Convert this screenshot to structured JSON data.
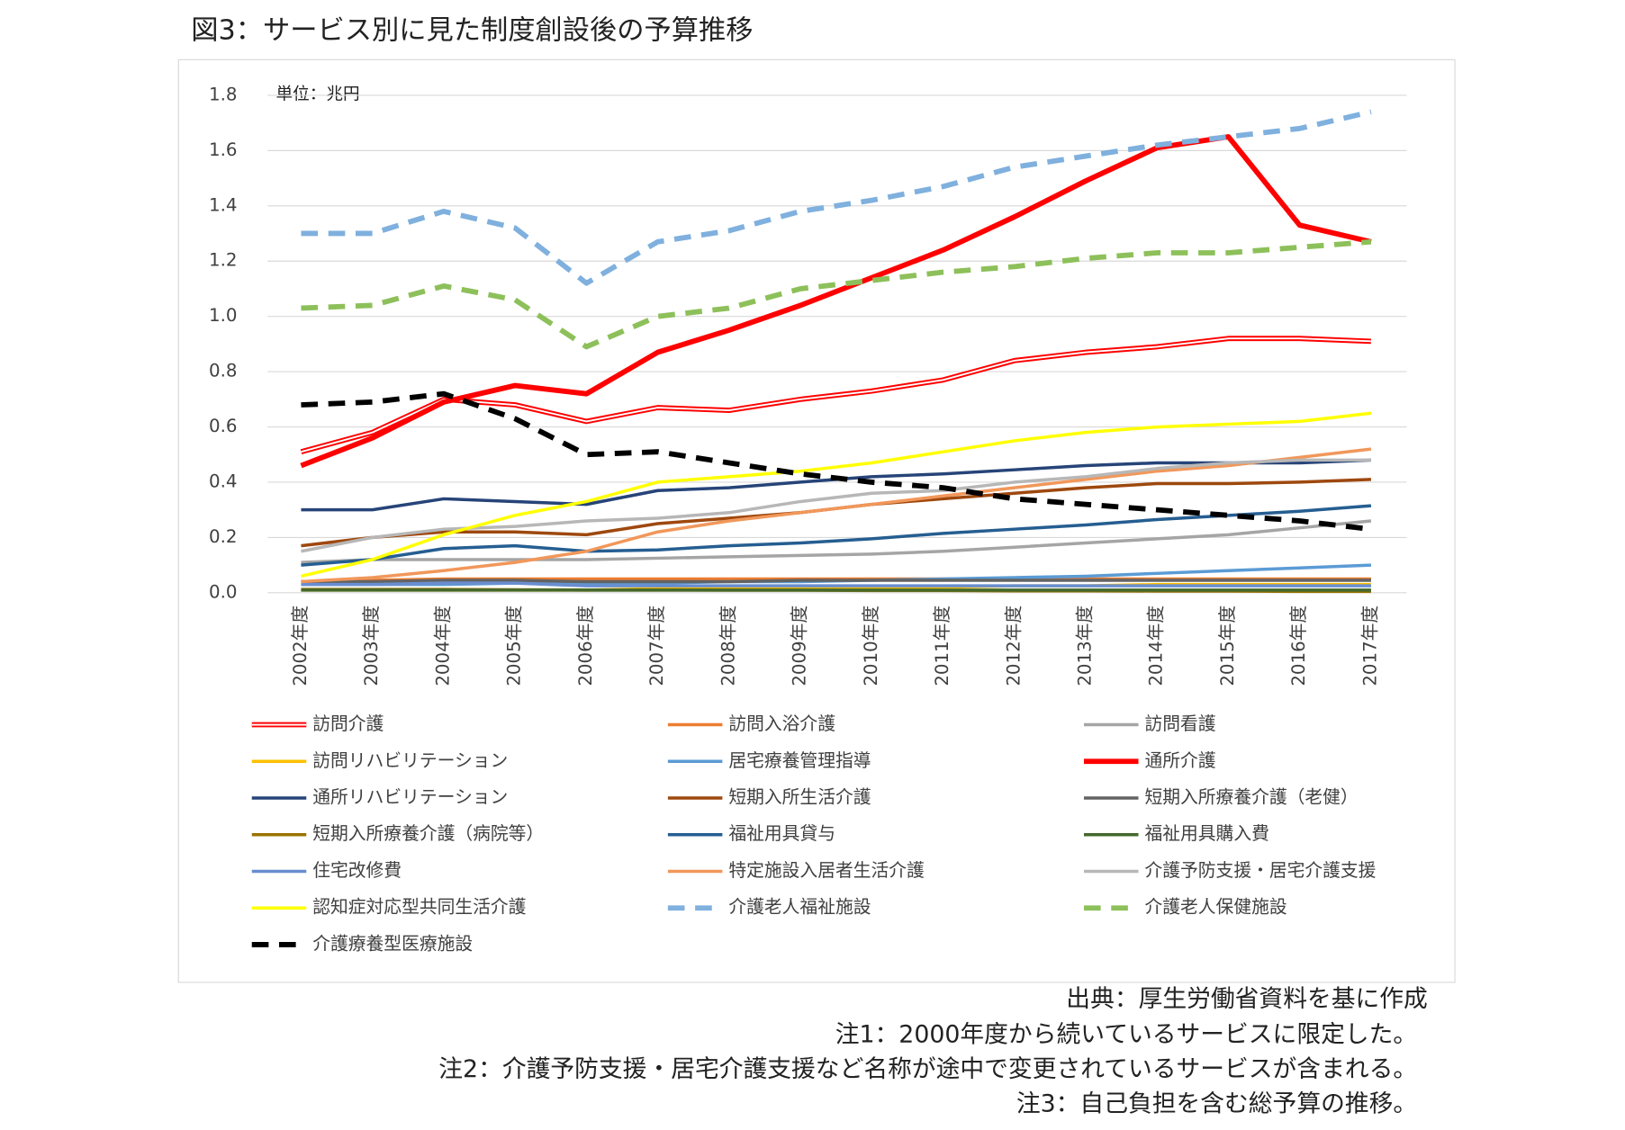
{
  "chart_data": {
    "type": "line",
    "title": "図3：サービス別に見た制度創設後の予算推移",
    "unit_label": "単位：兆円",
    "categories": [
      "2002年度",
      "2003年度",
      "2004年度",
      "2005年度",
      "2006年度",
      "2007年度",
      "2008年度",
      "2009年度",
      "2010年度",
      "2011年度",
      "2012年度",
      "2013年度",
      "2014年度",
      "2015年度",
      "2016年度",
      "2017年度"
    ],
    "ylim": [
      0,
      1.8
    ],
    "yticks": [
      {
        "value": 0,
        "label": "0.0"
      },
      0.2,
      0.4,
      0.6,
      0.8,
      {
        "value": 1,
        "label": "1.0"
      },
      1.2,
      1.4,
      1.6,
      1.8
    ],
    "grid": true,
    "series": [
      {
        "name": "訪問介護",
        "color": "#ff0000",
        "line_style": "double",
        "values": [
          0.51,
          0.58,
          0.7,
          0.68,
          0.62,
          0.67,
          0.66,
          0.7,
          0.73,
          0.77,
          0.84,
          0.87,
          0.89,
          0.92,
          0.92,
          0.91
        ]
      },
      {
        "name": "訪問入浴介護",
        "color": "#ed7d31",
        "line_style": "solid",
        "values": [
          0.04,
          0.045,
          0.05,
          0.05,
          0.05,
          0.05,
          0.05,
          0.05,
          0.05,
          0.05,
          0.05,
          0.05,
          0.05,
          0.05,
          0.05,
          0.05
        ]
      },
      {
        "name": "訪問看護",
        "color": "#a5a5a5",
        "line_style": "solid",
        "values": [
          0.11,
          0.12,
          0.12,
          0.12,
          0.12,
          0.125,
          0.13,
          0.135,
          0.14,
          0.15,
          0.165,
          0.18,
          0.195,
          0.21,
          0.235,
          0.26
        ]
      },
      {
        "name": "訪問リハビリテーション",
        "color": "#ffc000",
        "line_style": "solid",
        "values": [
          0.01,
          0.01,
          0.01,
          0.01,
          0.01,
          0.015,
          0.015,
          0.02,
          0.02,
          0.02,
          0.025,
          0.025,
          0.03,
          0.03,
          0.03,
          0.03
        ]
      },
      {
        "name": "居宅療養管理指導",
        "color": "#5b9bd5",
        "line_style": "solid",
        "values": [
          0.03,
          0.03,
          0.03,
          0.035,
          0.035,
          0.035,
          0.04,
          0.04,
          0.045,
          0.05,
          0.055,
          0.06,
          0.07,
          0.08,
          0.09,
          0.1
        ]
      },
      {
        "name": "通所介護",
        "color": "#ff0000",
        "line_style": "thick",
        "values": [
          0.46,
          0.56,
          0.69,
          0.75,
          0.72,
          0.87,
          0.95,
          1.04,
          1.14,
          1.24,
          1.36,
          1.49,
          1.61,
          1.65,
          1.33,
          1.27
        ]
      },
      {
        "name": "通所リハビリテーション",
        "color": "#264478",
        "line_style": "solid",
        "values": [
          0.3,
          0.3,
          0.34,
          0.33,
          0.32,
          0.37,
          0.38,
          0.4,
          0.42,
          0.43,
          0.445,
          0.46,
          0.47,
          0.47,
          0.47,
          0.48
        ]
      },
      {
        "name": "短期入所生活介護",
        "color": "#9e480e",
        "line_style": "solid",
        "values": [
          0.17,
          0.2,
          0.22,
          0.22,
          0.21,
          0.25,
          0.27,
          0.29,
          0.32,
          0.34,
          0.36,
          0.38,
          0.395,
          0.395,
          0.4,
          0.41
        ]
      },
      {
        "name": "短期入所療養介護（老健）",
        "color": "#636363",
        "line_style": "solid",
        "values": [
          0.04,
          0.04,
          0.045,
          0.045,
          0.04,
          0.04,
          0.04,
          0.045,
          0.045,
          0.045,
          0.045,
          0.045,
          0.045,
          0.045,
          0.045,
          0.045
        ]
      },
      {
        "name": "短期入所療養介護（病院等）",
        "color": "#997300",
        "line_style": "solid",
        "values": [
          0.012,
          0.012,
          0.012,
          0.011,
          0.01,
          0.01,
          0.009,
          0.009,
          0.008,
          0.008,
          0.007,
          0.007,
          0.006,
          0.006,
          0.005,
          0.005
        ]
      },
      {
        "name": "福祉用具貸与",
        "color": "#255e91",
        "line_style": "solid",
        "values": [
          0.1,
          0.12,
          0.16,
          0.17,
          0.15,
          0.155,
          0.17,
          0.18,
          0.195,
          0.215,
          0.23,
          0.245,
          0.265,
          0.28,
          0.295,
          0.315
        ]
      },
      {
        "name": "福祉用具購入費",
        "color": "#43682b",
        "line_style": "solid",
        "values": [
          0.01,
          0.01,
          0.01,
          0.01,
          0.01,
          0.01,
          0.01,
          0.01,
          0.01,
          0.01,
          0.01,
          0.01,
          0.01,
          0.01,
          0.01,
          0.01
        ]
      },
      {
        "name": "住宅改修費",
        "color": "#698ed0",
        "line_style": "solid",
        "values": [
          0.03,
          0.03,
          0.035,
          0.035,
          0.025,
          0.025,
          0.025,
          0.025,
          0.025,
          0.025,
          0.025,
          0.025,
          0.025,
          0.025,
          0.025,
          0.025
        ]
      },
      {
        "name": "特定施設入居者生活介護",
        "color": "#f1975a",
        "line_style": "solid",
        "values": [
          0.04,
          0.055,
          0.08,
          0.11,
          0.15,
          0.22,
          0.26,
          0.29,
          0.32,
          0.35,
          0.38,
          0.41,
          0.44,
          0.46,
          0.49,
          0.52
        ]
      },
      {
        "name": "介護予防支援・居宅介護支援",
        "color": "#b7b7b7",
        "line_style": "solid",
        "values": [
          0.15,
          0.2,
          0.23,
          0.24,
          0.26,
          0.27,
          0.29,
          0.33,
          0.36,
          0.37,
          0.4,
          0.42,
          0.45,
          0.47,
          0.48,
          0.48
        ]
      },
      {
        "name": "認知症対応型共同生活介護",
        "color": "#ffff00",
        "line_style": "solid",
        "values": [
          0.06,
          0.12,
          0.21,
          0.28,
          0.33,
          0.4,
          0.42,
          0.44,
          0.47,
          0.51,
          0.55,
          0.58,
          0.6,
          0.61,
          0.62,
          0.65
        ]
      },
      {
        "name": "介護老人福祉施設",
        "color": "#7fb0de",
        "line_style": "dashed",
        "values": [
          1.3,
          1.3,
          1.38,
          1.32,
          1.12,
          1.27,
          1.31,
          1.38,
          1.42,
          1.47,
          1.54,
          1.58,
          1.62,
          1.65,
          1.68,
          1.74
        ]
      },
      {
        "name": "介護老人保健施設",
        "color": "#8dc05a",
        "line_style": "dashed",
        "values": [
          1.03,
          1.04,
          1.11,
          1.06,
          0.89,
          1.0,
          1.03,
          1.1,
          1.13,
          1.16,
          1.18,
          1.21,
          1.23,
          1.23,
          1.25,
          1.27
        ]
      },
      {
        "name": "介護療養型医療施設",
        "color": "#000000",
        "line_style": "dashed",
        "values": [
          0.68,
          0.69,
          0.72,
          0.63,
          0.5,
          0.51,
          0.47,
          0.43,
          0.4,
          0.38,
          0.34,
          0.32,
          0.3,
          0.28,
          0.26,
          0.23
        ]
      }
    ],
    "source": "出典：厚生労働省資料を基に作成",
    "notes": [
      "注1：2000年度から続いているサービスに限定した。",
      "注2：介護予防支援・居宅介護支援など名称が途中で変更されているサービスが含まれる。",
      "注3：自己負担を含む総予算の推移。"
    ]
  }
}
